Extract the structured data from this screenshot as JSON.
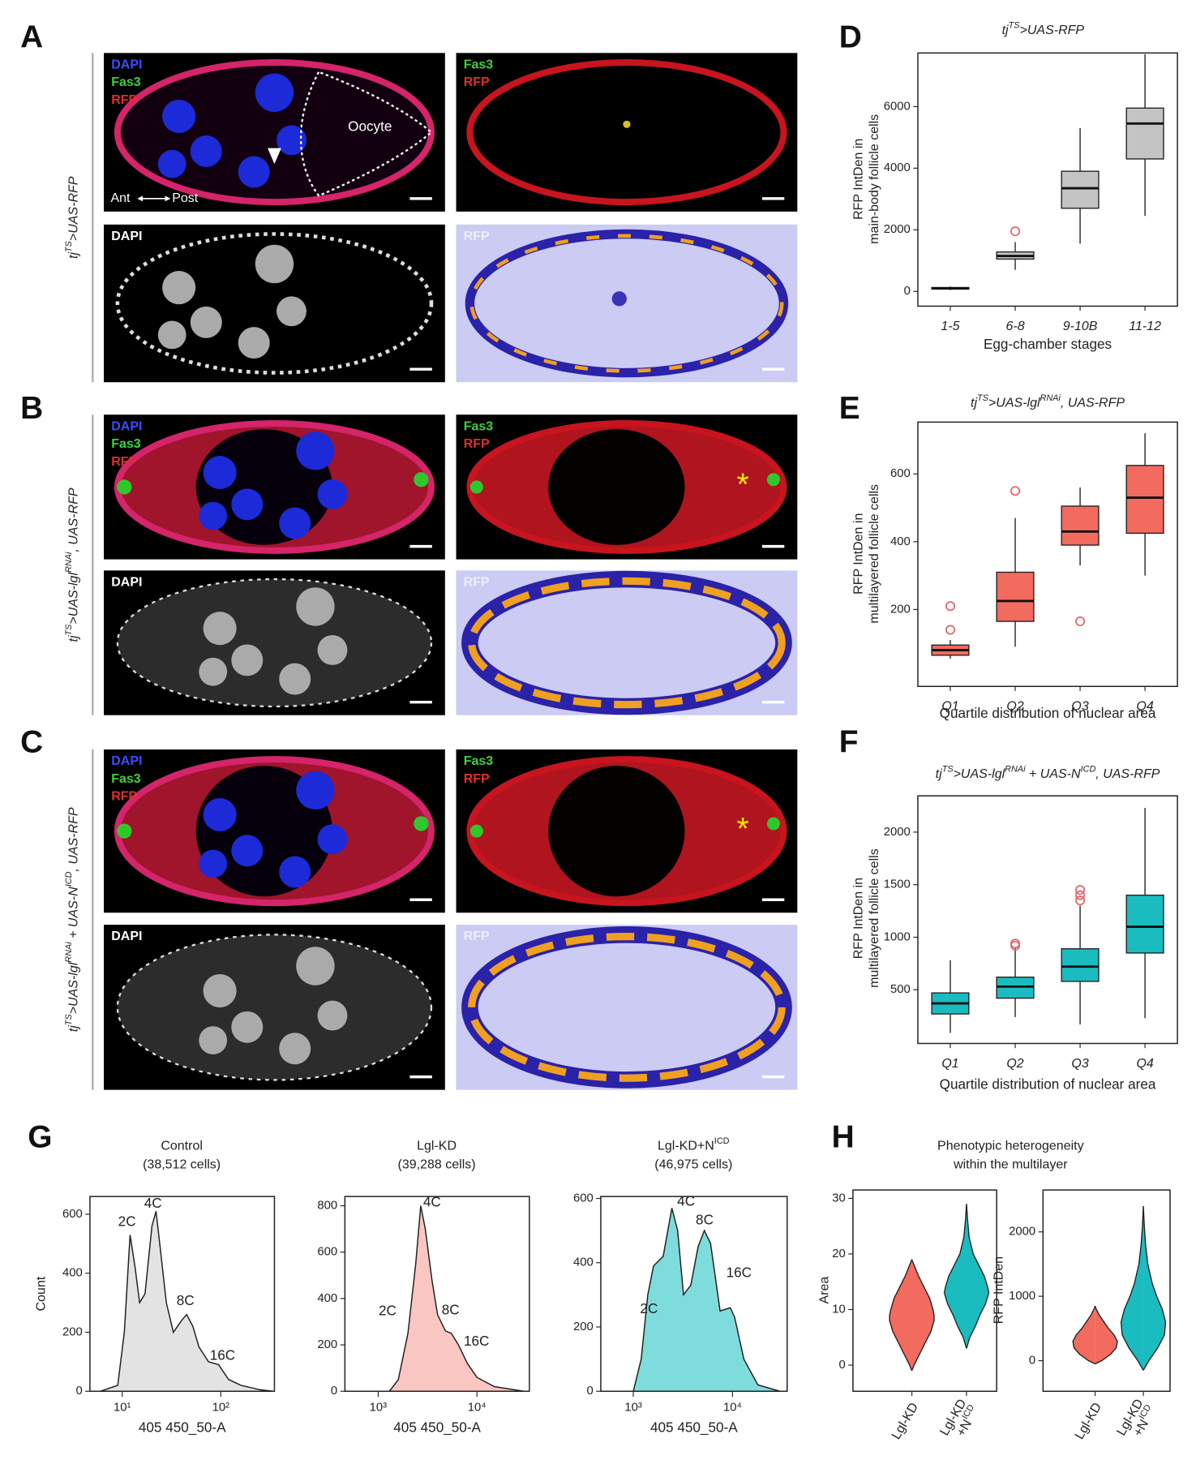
{
  "panel_labels": [
    "A",
    "B",
    "C",
    "D",
    "E",
    "F",
    "G",
    "H"
  ],
  "micrographs": [
    {
      "genotype": [
        [
          "tj",
          "TS",
          ">UAS-RFP"
        ]
      ],
      "tiles": [
        {
          "labels": [
            {
              "text": "DAPI",
              "color": "#3b4cff"
            },
            {
              "text": "Fas3",
              "color": "#3ed13e"
            },
            {
              "text": "RFP",
              "color": "#e0302a"
            }
          ],
          "annotations": [
            "Oocyte",
            "Ant",
            "Post"
          ]
        },
        {
          "labels": [
            {
              "text": "Fas3",
              "color": "#3ed13e"
            },
            {
              "text": "RFP",
              "color": "#e0302a"
            }
          ]
        },
        {
          "labels": [
            {
              "text": "DAPI",
              "color": "#ffffff"
            }
          ]
        },
        {
          "labels": [
            {
              "text": "RFP",
              "color": "#eeeeff"
            }
          ]
        }
      ]
    },
    {
      "genotype": [
        [
          "tj",
          "TS",
          ">UAS-lgl",
          "RNAi",
          ", UAS-RFP"
        ]
      ],
      "tiles": [
        {
          "labels": [
            {
              "text": "DAPI",
              "color": "#3b4cff"
            },
            {
              "text": "Fas3",
              "color": "#3ed13e"
            },
            {
              "text": "RFP",
              "color": "#e0302a"
            }
          ]
        },
        {
          "labels": [
            {
              "text": "Fas3",
              "color": "#3ed13e"
            },
            {
              "text": "RFP",
              "color": "#e0302a"
            }
          ],
          "annotations": [
            "*"
          ]
        },
        {
          "labels": [
            {
              "text": "DAPI",
              "color": "#ffffff"
            }
          ]
        },
        {
          "labels": [
            {
              "text": "RFP",
              "color": "#eeeeff"
            }
          ]
        }
      ]
    },
    {
      "genotype": [
        [
          "tj",
          "TS",
          ">UAS-lgl",
          "RNAi",
          " + UAS-N",
          "ICD",
          ", UAS-RFP"
        ]
      ],
      "tiles": [
        {
          "labels": [
            {
              "text": "DAPI",
              "color": "#3b4cff"
            },
            {
              "text": "Fas3",
              "color": "#3ed13e"
            },
            {
              "text": "RFP",
              "color": "#e0302a"
            }
          ]
        },
        {
          "labels": [
            {
              "text": "Fas3",
              "color": "#3ed13e"
            },
            {
              "text": "RFP",
              "color": "#e0302a"
            }
          ],
          "annotations": [
            "*"
          ]
        },
        {
          "labels": [
            {
              "text": "DAPI",
              "color": "#ffffff"
            }
          ]
        },
        {
          "labels": [
            {
              "text": "RFP",
              "color": "#eeeeff"
            }
          ]
        }
      ]
    }
  ],
  "panel_h_title": [
    [
      "Phenotypic heterogeneity"
    ],
    [
      "within the multilayer"
    ]
  ],
  "chart_data": [
    {
      "type": "box",
      "title": [
        [
          "tj",
          "TS",
          ">UAS-RFP"
        ]
      ],
      "ylabel": [
        [
          "RFP IntDen in"
        ],
        [
          "main-body follicle cells"
        ]
      ],
      "xlabel": "Egg-chamber stages",
      "categories": [
        "1-5",
        "6-8",
        "9-10B",
        "11-12"
      ],
      "boxes": [
        {
          "min": 40,
          "q1": 75,
          "median": 100,
          "q3": 125,
          "max": 160,
          "outliers": []
        },
        {
          "min": 700,
          "q1": 1050,
          "median": 1150,
          "q3": 1280,
          "max": 1600,
          "outliers": [
            1950
          ]
        },
        {
          "min": 1550,
          "q1": 2700,
          "median": 3350,
          "q3": 3900,
          "max": 5300,
          "outliers": []
        },
        {
          "min": 2450,
          "q1": 4300,
          "median": 5450,
          "q3": 5950,
          "max": 7700,
          "outliers": []
        }
      ],
      "color": "#c4c4c4",
      "outlier_color": "#e8606a",
      "ylim": [
        -480,
        7740
      ],
      "yticks": [
        0,
        2000,
        4000,
        6000
      ]
    },
    {
      "type": "box",
      "title": [
        [
          "tj",
          "TS",
          ">UAS-lgl",
          "RNAi",
          ", UAS-RFP"
        ]
      ],
      "ylabel": [
        [
          "RFP IntDen in"
        ],
        [
          "multilayered follicle cells"
        ]
      ],
      "xlabel": "Quartile distribution of nuclear area",
      "categories": [
        "Q1",
        "Q2",
        "Q3",
        "Q4"
      ],
      "boxes": [
        {
          "min": 55,
          "q1": 65,
          "median": 80,
          "q3": 95,
          "max": 110,
          "outliers": [
            140,
            210
          ]
        },
        {
          "min": 90,
          "q1": 165,
          "median": 225,
          "q3": 310,
          "max": 470,
          "outliers": [
            550
          ]
        },
        {
          "min": 330,
          "q1": 390,
          "median": 430,
          "q3": 505,
          "max": 560,
          "outliers": [
            165
          ]
        },
        {
          "min": 300,
          "q1": 425,
          "median": 530,
          "q3": 625,
          "max": 720,
          "outliers": []
        }
      ],
      "color": "#f26b5e",
      "outlier_color": "#e8606a",
      "ylim": [
        -27,
        753
      ],
      "yticks": [
        200,
        400,
        600
      ]
    },
    {
      "type": "box",
      "title": [
        [
          "tj",
          "TS",
          ">UAS-lgl",
          "RNAi",
          " + UAS-N",
          "ICD",
          ", UAS-RFP"
        ]
      ],
      "ylabel": [
        [
          "RFP IntDen in"
        ],
        [
          "multilayered follicle cells"
        ]
      ],
      "xlabel": "Quartile distribution of nuclear area",
      "categories": [
        "Q1",
        "Q2",
        "Q3",
        "Q4"
      ],
      "boxes": [
        {
          "min": 90,
          "q1": 270,
          "median": 370,
          "q3": 470,
          "max": 780,
          "outliers": []
        },
        {
          "min": 240,
          "q1": 420,
          "median": 530,
          "q3": 620,
          "max": 900,
          "outliers": [
            920,
            940
          ]
        },
        {
          "min": 170,
          "q1": 580,
          "median": 720,
          "q3": 890,
          "max": 1300,
          "outliers": [
            1350,
            1400,
            1450
          ]
        },
        {
          "min": 230,
          "q1": 850,
          "median": 1100,
          "q3": 1400,
          "max": 2230,
          "outliers": []
        }
      ],
      "color": "#1bbcc0",
      "outlier_color": "#e8606a",
      "ylim": [
        -11,
        2345
      ],
      "yticks": [
        500,
        1000,
        1500,
        2000
      ]
    },
    {
      "type": "area",
      "title": [
        [
          "Control"
        ],
        [
          "(38,512 cells)"
        ]
      ],
      "ylabel": [
        [
          "Count"
        ]
      ],
      "xlabel": "405 450_50-A",
      "log_x": true,
      "x": [
        6,
        9,
        10.5,
        12,
        13.5,
        15,
        17,
        20,
        22,
        24,
        28,
        33,
        40,
        45,
        52,
        60,
        75,
        95,
        120,
        160,
        250,
        340
      ],
      "values": [
        0,
        20,
        200,
        530,
        420,
        300,
        330,
        560,
        610,
        500,
        300,
        200,
        240,
        260,
        220,
        150,
        100,
        90,
        40,
        20,
        5,
        0
      ],
      "color": "#e3e3e3",
      "xlim": [
        4.7,
        350
      ],
      "xticks": [
        {
          "value": 10,
          "label": "10¹"
        },
        {
          "value": 100,
          "label": "10²"
        }
      ],
      "ylim": [
        0,
        660
      ],
      "yticks": [
        0,
        200,
        400,
        600
      ],
      "annotations": [
        "2C",
        "4C",
        "8C",
        "16C"
      ]
    },
    {
      "type": "area",
      "title": [
        [
          "Lgl-KD"
        ],
        [
          "(39,288 cells)"
        ]
      ],
      "xlabel": "405 450_50-A",
      "log_x": true,
      "x": [
        1300,
        1600,
        2000,
        2400,
        2700,
        3000,
        3500,
        4000,
        4800,
        5500,
        6500,
        8000,
        10000,
        15000,
        30000
      ],
      "values": [
        0,
        50,
        250,
        550,
        800,
        700,
        480,
        330,
        260,
        250,
        200,
        120,
        60,
        20,
        0
      ],
      "color": "#f9c6c2",
      "xlim": [
        460,
        34000
      ],
      "xticks": [
        {
          "value": 1000,
          "label": "10³"
        },
        {
          "value": 10000,
          "label": "10⁴"
        }
      ],
      "ylim": [
        0,
        840
      ],
      "yticks": [
        0,
        200,
        400,
        600,
        800
      ],
      "annotations": [
        "2C",
        "4C",
        "8C",
        "16C"
      ]
    },
    {
      "type": "area",
      "title": [
        [
          "Lgl-KD+N",
          "ICD"
        ],
        [
          "(46,975 cells)"
        ]
      ],
      "xlabel": "405 450_50-A",
      "log_x": true,
      "x": [
        1000,
        1200,
        1400,
        1600,
        2000,
        2450,
        2800,
        3200,
        3800,
        4500,
        5200,
        6000,
        7500,
        9500,
        10500,
        13000,
        18000,
        30000
      ],
      "values": [
        0,
        100,
        300,
        390,
        420,
        570,
        500,
        300,
        330,
        450,
        500,
        460,
        250,
        260,
        230,
        100,
        20,
        0
      ],
      "color": "#7fdcdc",
      "xlim": [
        470,
        35500
      ],
      "xticks": [
        {
          "value": 1000,
          "label": "10³"
        },
        {
          "value": 10000,
          "label": "10⁴"
        }
      ],
      "ylim": [
        0,
        606
      ],
      "yticks": [
        0,
        200,
        400,
        600
      ],
      "annotations": [
        "2C",
        "4C",
        "8C",
        "16C"
      ]
    },
    {
      "type": "violin",
      "ylabel": [
        [
          "Area"
        ]
      ],
      "categories": [
        [
          [
            "Lgl-KD"
          ]
        ],
        [
          [
            "Lgl-KD"
          ],
          [
            "+N",
            "ICD"
          ]
        ]
      ],
      "colors": [
        "#f26b5e",
        "#1bbcc0"
      ],
      "violins": [
        {
          "y": [
            -1,
            0,
            2,
            4,
            6,
            8,
            9,
            10,
            12,
            14,
            16,
            18,
            19
          ],
          "density": [
            0,
            0.1,
            0.35,
            0.6,
            0.85,
            1,
            1,
            0.95,
            0.8,
            0.55,
            0.3,
            0.1,
            0
          ]
        },
        {
          "y": [
            3,
            5,
            7,
            9,
            11,
            13,
            14,
            16,
            18,
            20,
            23,
            26,
            29
          ],
          "density": [
            0,
            0.15,
            0.4,
            0.6,
            0.85,
            1,
            0.95,
            0.8,
            0.55,
            0.3,
            0.12,
            0.05,
            0
          ]
        }
      ],
      "ylim": [
        -4.7,
        31.5
      ],
      "yticks": [
        0,
        10,
        20,
        30
      ]
    },
    {
      "type": "violin",
      "ylabel": [
        [
          "RFP IntDen"
        ]
      ],
      "categories": [
        [
          [
            "Lgl-KD"
          ]
        ],
        [
          [
            "Lgl-KD"
          ],
          [
            "+N",
            "ICD"
          ]
        ]
      ],
      "colors": [
        "#f26b5e",
        "#1bbcc0"
      ],
      "violins": [
        {
          "y": [
            -50,
            0,
            100,
            200,
            300,
            400,
            500,
            600,
            700,
            800,
            850
          ],
          "density": [
            0,
            0.3,
            0.7,
            0.95,
            1,
            0.85,
            0.6,
            0.4,
            0.2,
            0.05,
            0
          ]
        },
        {
          "y": [
            -150,
            0,
            200,
            400,
            600,
            800,
            1000,
            1200,
            1500,
            1800,
            2100,
            2400
          ],
          "density": [
            0,
            0.25,
            0.65,
            0.95,
            1,
            0.85,
            0.6,
            0.4,
            0.2,
            0.1,
            0.04,
            0
          ]
        }
      ],
      "ylim": [
        -475,
        2650
      ],
      "yticks": [
        0,
        1000,
        2000
      ]
    }
  ]
}
